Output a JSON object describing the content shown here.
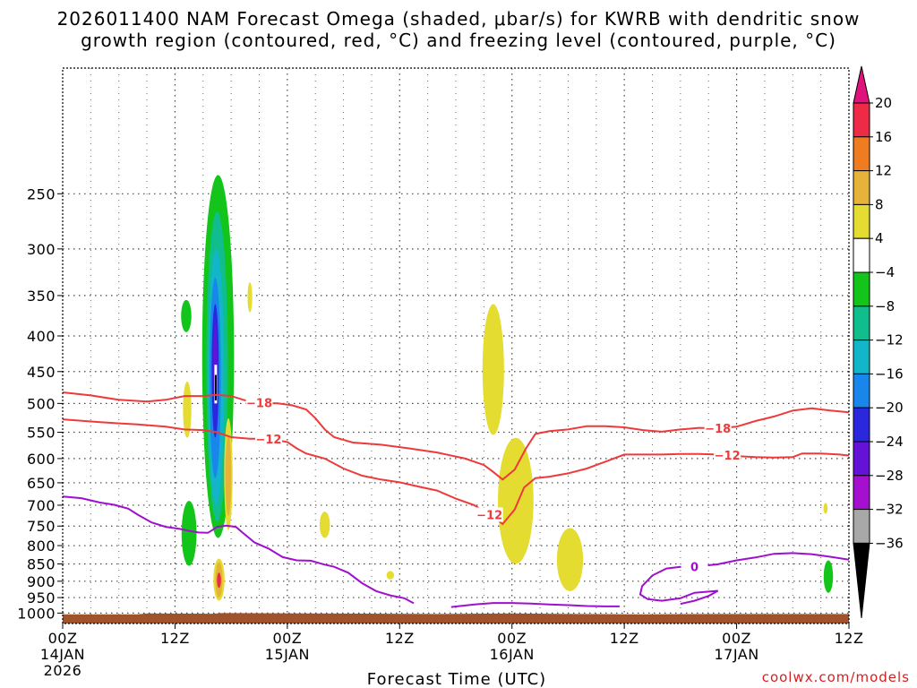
{
  "chart_data": {
    "type": "time-height cross section",
    "title_line1": "2026011400 NAM Forecast Omega (shaded, μbar/s) for KWRB with dendritic snow",
    "title_line2": "growth region (contoured, red, °C) and freezing level (contoured, purple, °C)",
    "xlabel": "Forecast Time (UTC)",
    "credit": "coolwx.com/models",
    "x_range_hours": [
      0,
      84
    ],
    "y_range_hpa": [
      1035,
      165
    ],
    "y_ticks": [
      250,
      300,
      350,
      400,
      450,
      500,
      550,
      600,
      650,
      700,
      750,
      800,
      850,
      900,
      950,
      1000
    ],
    "x_ticks": [
      {
        "hour": 0,
        "lines": [
          "00Z",
          "14JAN",
          "2026"
        ]
      },
      {
        "hour": 12,
        "lines": [
          "12Z"
        ]
      },
      {
        "hour": 24,
        "lines": [
          "00Z",
          "15JAN"
        ]
      },
      {
        "hour": 36,
        "lines": [
          "12Z"
        ]
      },
      {
        "hour": 48,
        "lines": [
          "00Z",
          "16JAN"
        ]
      },
      {
        "hour": 60,
        "lines": [
          "12Z"
        ]
      },
      {
        "hour": 72,
        "lines": [
          "00Z",
          "17JAN"
        ]
      },
      {
        "hour": 84,
        "lines": [
          "12Z"
        ]
      }
    ],
    "colorbar": {
      "labels": [
        "20",
        "16",
        "12",
        "8",
        "4",
        "−4",
        "−8",
        "−12",
        "−16",
        "−20",
        "−24",
        "−28",
        "−32",
        "−36"
      ],
      "colors": [
        "#ee2b46",
        "#ef7c20",
        "#e6b23a",
        "#e5dc32",
        "#ffffff",
        "#13c41a",
        "#0fbe8c",
        "#12b6c8",
        "#1986ec",
        "#2a27dd",
        "#6412d8",
        "#a40fd0",
        "#a8a8a8"
      ],
      "top_arrow": "#e0137d",
      "bottom_arrow": "#000000"
    },
    "contours": {
      "dendritic_minus18": {
        "label": "−18",
        "color": "#ee3a3a",
        "points": [
          [
            0,
            482
          ],
          [
            3,
            487
          ],
          [
            6,
            494
          ],
          [
            9,
            497
          ],
          [
            11,
            494
          ],
          [
            13,
            488
          ],
          [
            15,
            488
          ],
          [
            16.5,
            486
          ],
          [
            18,
            488
          ],
          [
            19.5,
            495
          ],
          [
            21,
            499
          ],
          [
            23,
            500
          ],
          [
            24.5,
            503
          ],
          [
            26,
            510
          ],
          [
            27,
            525
          ],
          [
            28,
            545
          ],
          [
            29,
            559
          ],
          [
            31,
            569
          ],
          [
            34,
            573
          ],
          [
            37,
            580
          ],
          [
            40,
            588
          ],
          [
            43,
            600
          ],
          [
            45,
            613
          ],
          [
            46,
            627
          ],
          [
            47,
            643
          ],
          [
            48.3,
            622
          ],
          [
            49.5,
            580
          ],
          [
            50.5,
            553
          ],
          [
            52,
            548
          ],
          [
            54,
            545
          ],
          [
            56,
            539
          ],
          [
            58,
            539
          ],
          [
            60,
            541
          ],
          [
            62,
            546
          ],
          [
            64,
            549
          ],
          [
            66,
            545
          ],
          [
            68,
            542
          ],
          [
            70,
            543
          ],
          [
            72,
            540
          ],
          [
            74,
            530
          ],
          [
            76,
            522
          ],
          [
            78,
            512
          ],
          [
            80,
            508
          ],
          [
            82,
            512
          ],
          [
            84,
            515
          ]
        ],
        "labels_at": [
          21,
          70
        ]
      },
      "dendritic_minus12": {
        "label": "−12",
        "color": "#ee3a3a",
        "points": [
          [
            0,
            527
          ],
          [
            4,
            532
          ],
          [
            8,
            536
          ],
          [
            11,
            540
          ],
          [
            13,
            545
          ],
          [
            15,
            546
          ],
          [
            16.5,
            550
          ],
          [
            18,
            559
          ],
          [
            20,
            562
          ],
          [
            22,
            562
          ],
          [
            24,
            568
          ],
          [
            25,
            580
          ],
          [
            26,
            590
          ],
          [
            28,
            600
          ],
          [
            30,
            620
          ],
          [
            32,
            635
          ],
          [
            34,
            643
          ],
          [
            36,
            649
          ],
          [
            38,
            658
          ],
          [
            40,
            667
          ],
          [
            42,
            685
          ],
          [
            44,
            700
          ],
          [
            45,
            715
          ],
          [
            46,
            727
          ],
          [
            47,
            745
          ],
          [
            48.3,
            710
          ],
          [
            49.3,
            660
          ],
          [
            50.5,
            640
          ],
          [
            52,
            637
          ],
          [
            54,
            630
          ],
          [
            56,
            620
          ],
          [
            58,
            606
          ],
          [
            59,
            599
          ],
          [
            60,
            592
          ],
          [
            62,
            592
          ],
          [
            64,
            592
          ],
          [
            66,
            591
          ],
          [
            68,
            591
          ],
          [
            70,
            592
          ],
          [
            72,
            595
          ],
          [
            74,
            597
          ],
          [
            76,
            598
          ],
          [
            78,
            597
          ],
          [
            79,
            590
          ],
          [
            81,
            590
          ],
          [
            83,
            592
          ],
          [
            84,
            594
          ]
        ],
        "labels_at": [
          22,
          45.6,
          71
        ]
      },
      "freezing_level_0": {
        "label": "0",
        "color": "#a00fd0",
        "points": [
          [
            0,
            680
          ],
          [
            2,
            684
          ],
          [
            4,
            694
          ],
          [
            5.5,
            699
          ],
          [
            7,
            708
          ],
          [
            8,
            722
          ],
          [
            9.5,
            741
          ],
          [
            11,
            752
          ],
          [
            12.5,
            757
          ],
          [
            13.5,
            762
          ],
          [
            14.5,
            766
          ],
          [
            15.5,
            767
          ],
          [
            16,
            760
          ],
          [
            16.5,
            752
          ],
          [
            17.5,
            749
          ],
          [
            18.5,
            752
          ],
          [
            19.2,
            766
          ],
          [
            20.5,
            792
          ],
          [
            22,
            808
          ],
          [
            23.5,
            831
          ],
          [
            25,
            840
          ],
          [
            26.5,
            841
          ],
          [
            28,
            852
          ],
          [
            29,
            858
          ],
          [
            30.5,
            875
          ],
          [
            32,
            906
          ],
          [
            33.5,
            930
          ],
          [
            35,
            943
          ],
          [
            36.5,
            952
          ],
          [
            37.5,
            968
          ]
        ],
        "secondary": [
          [
            [
              41.5,
              980
            ],
            [
              44,
              972
            ],
            [
              46,
              967
            ],
            [
              48,
              967
            ],
            [
              50,
              969
            ],
            [
              52,
              972
            ],
            [
              54,
              974
            ],
            [
              56,
              977
            ],
            [
              58,
              978
            ],
            [
              59.5,
              978
            ]
          ],
          [
            [
              66,
              970
            ],
            [
              67.5,
              960
            ],
            [
              69,
              945
            ],
            [
              70,
              929
            ],
            [
              67.5,
              935
            ],
            [
              66,
              952
            ],
            [
              64,
              960
            ],
            [
              62.5,
              955
            ],
            [
              61.7,
              940
            ],
            [
              61.9,
              915
            ],
            [
              63,
              883
            ],
            [
              64.5,
              863
            ],
            [
              66,
              858
            ],
            [
              67,
              860
            ],
            [
              68.5,
              855
            ],
            [
              70,
              851
            ],
            [
              72,
              840
            ],
            [
              74,
              832
            ],
            [
              76,
              822
            ],
            [
              78,
              820
            ],
            [
              80,
              823
            ],
            [
              82,
              830
            ],
            [
              84,
              838
            ]
          ]
        ],
        "label_at": [
          67.5,
          858
        ]
      }
    },
    "shaded_regions": [
      {
        "color": "#e5dc32",
        "desc": "yellow 4-8"
      },
      {
        "color": "#13c41a",
        "desc": "green -4 to -8"
      },
      {
        "color": "#0fbe8c",
        "desc": "teal -8 to -12"
      },
      {
        "color": "#12b6c8",
        "desc": "cyan -12 to -16"
      },
      {
        "color": "#1986ec",
        "desc": "blue -16 to -20"
      },
      {
        "color": "#2a27dd",
        "desc": "dark blue -20 to -24"
      },
      {
        "color": "#6412d8",
        "desc": "purple -24 to -28"
      },
      {
        "color": "#e6b23a",
        "desc": "orange 8-12"
      },
      {
        "color": "#ef7c20",
        "desc": "dark orange 12-16"
      },
      {
        "color": "#ee2b46",
        "desc": "red 16-20"
      }
    ],
    "ground_color": "#a0522d"
  }
}
